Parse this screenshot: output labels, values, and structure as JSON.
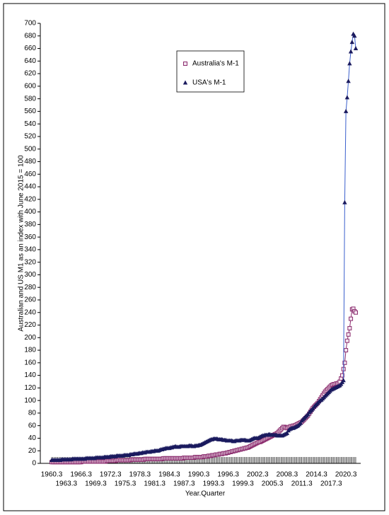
{
  "chart_data": {
    "type": "line",
    "y_label": "Australian and US M1 as an index with June 2015 = 100",
    "x_label": "Year.Quarter",
    "categories": [
      "1960.3",
      null,
      null,
      null,
      null,
      null,
      null,
      null,
      null,
      null,
      null,
      null,
      "1963.3",
      null,
      null,
      null,
      null,
      null,
      null,
      null,
      null,
      null,
      null,
      null,
      "1966.3",
      null,
      null,
      null,
      null,
      null,
      null,
      null,
      null,
      null,
      null,
      null,
      "1969.3",
      null,
      null,
      null,
      null,
      null,
      null,
      null,
      null,
      null,
      null,
      null,
      "1972.3",
      null,
      null,
      null,
      null,
      null,
      null,
      null,
      null,
      null,
      null,
      null,
      "1975.3",
      null,
      null,
      null,
      null,
      null,
      null,
      null,
      null,
      null,
      null,
      null,
      "1978.3",
      null,
      null,
      null,
      null,
      null,
      null,
      null,
      null,
      null,
      null,
      null,
      "1981.3",
      null,
      null,
      null,
      null,
      null,
      null,
      null,
      null,
      null,
      null,
      null,
      "1984.3",
      null,
      null,
      null,
      null,
      null,
      null,
      null,
      null,
      null,
      null,
      null,
      "1987.3",
      null,
      null,
      null,
      null,
      null,
      null,
      null,
      null,
      null,
      null,
      null,
      "1990.3",
      null,
      null,
      null,
      null,
      null,
      null,
      null,
      null,
      null,
      null,
      null,
      "1993.3",
      null,
      null,
      null,
      null,
      null,
      null,
      null,
      null,
      null,
      null,
      null,
      "1996.3",
      null,
      null,
      null,
      null,
      null,
      null,
      null,
      null,
      null,
      null,
      null,
      "1999.3",
      null,
      null,
      null,
      null,
      null,
      null,
      null,
      null,
      null,
      null,
      null,
      "2002.3",
      null,
      null,
      null,
      null,
      null,
      null,
      null,
      null,
      null,
      null,
      null,
      "2005.3",
      null,
      null,
      null,
      null,
      null,
      null,
      null,
      null,
      null,
      null,
      null,
      "2008.3",
      null,
      null,
      null,
      null,
      null,
      null,
      null,
      null,
      null,
      null,
      null,
      "2011.3",
      null,
      null,
      null,
      null,
      null,
      null,
      null,
      null,
      null,
      null,
      null,
      "2014.3",
      null,
      null,
      null,
      null,
      null,
      null,
      null,
      null,
      null,
      null,
      null,
      "2017.3",
      null,
      null,
      null,
      null,
      null,
      null,
      null,
      null,
      null,
      null,
      null,
      "2020.3",
      null,
      null,
      null,
      null,
      null,
      null,
      null,
      null
    ],
    "series": [
      {
        "name": "Australia's M-1",
        "color": "#8b2c6e",
        "marker": "square",
        "values": [
          2,
          2,
          2,
          2,
          2,
          2,
          2,
          2,
          2,
          2,
          2,
          2,
          2,
          2,
          2,
          2,
          2,
          2,
          2,
          2,
          2,
          2,
          2,
          2,
          2,
          3,
          3,
          3,
          3,
          3,
          3,
          3,
          3,
          3,
          3,
          3,
          3,
          3,
          3,
          3,
          3,
          3,
          3,
          3,
          3,
          4,
          4,
          4,
          4,
          4,
          4,
          4,
          4,
          5,
          5,
          5,
          5,
          5,
          5,
          5,
          5,
          5,
          5,
          5,
          5,
          6,
          6,
          6,
          6,
          6,
          6,
          6,
          6,
          6,
          6,
          6,
          7,
          7,
          7,
          7,
          7,
          7,
          7,
          7,
          7,
          7,
          7,
          7,
          7,
          7,
          7,
          8,
          8,
          8,
          8,
          8,
          8,
          8,
          8,
          8,
          8,
          8,
          8,
          8,
          8,
          8,
          8,
          8,
          9,
          9,
          9,
          9,
          9,
          9,
          9,
          9,
          9,
          10,
          10,
          10,
          10,
          10,
          10,
          10,
          11,
          11,
          11,
          11,
          12,
          12,
          12,
          13,
          13,
          13,
          14,
          14,
          14,
          15,
          15,
          15,
          16,
          16,
          16,
          17,
          17,
          18,
          18,
          19,
          19,
          20,
          20,
          21,
          21,
          22,
          22,
          23,
          23,
          24,
          24,
          25,
          25,
          26,
          27,
          28,
          29,
          30,
          31,
          32,
          33,
          34,
          34,
          35,
          36,
          37,
          38,
          39,
          40,
          41,
          42,
          43,
          44,
          45,
          46,
          47,
          48,
          50,
          52,
          54,
          56,
          58,
          58,
          57,
          56,
          57,
          58,
          59,
          59,
          60,
          60,
          61,
          62,
          63,
          64,
          65,
          66,
          68,
          70,
          72,
          74,
          76,
          79,
          82,
          85,
          88,
          90,
          92,
          94,
          96,
          99,
          102,
          105,
          108,
          111,
          114,
          116,
          118,
          120,
          122,
          124,
          125,
          126,
          126,
          127,
          127,
          128,
          130,
          135,
          140,
          150,
          160,
          180,
          195,
          205,
          215,
          230,
          245,
          246,
          242,
          240
        ]
      },
      {
        "name": "USA's M-1",
        "color": "#1a1a5e",
        "line_color": "#3a5fcd",
        "marker": "triangle",
        "values": [
          5,
          5,
          5,
          5,
          5,
          5,
          5,
          5,
          6,
          6,
          6,
          6,
          6,
          6,
          6,
          6,
          6,
          7,
          7,
          7,
          7,
          7,
          7,
          7,
          7,
          7,
          7,
          7,
          8,
          8,
          8,
          8,
          8,
          8,
          8,
          8,
          9,
          9,
          9,
          9,
          9,
          9,
          9,
          10,
          10,
          10,
          10,
          10,
          11,
          11,
          11,
          11,
          11,
          12,
          12,
          12,
          12,
          12,
          12,
          13,
          13,
          13,
          13,
          13,
          14,
          14,
          14,
          15,
          15,
          15,
          15,
          16,
          16,
          16,
          17,
          17,
          17,
          18,
          18,
          18,
          18,
          19,
          19,
          19,
          20,
          20,
          20,
          20,
          21,
          22,
          22,
          23,
          23,
          24,
          24,
          24,
          24,
          25,
          25,
          26,
          26,
          27,
          26,
          26,
          26,
          27,
          27,
          27,
          27,
          27,
          27,
          27,
          28,
          28,
          28,
          27,
          27,
          28,
          28,
          28,
          29,
          29,
          30,
          31,
          32,
          33,
          34,
          35,
          36,
          37,
          38,
          38,
          39,
          39,
          39,
          39,
          38,
          38,
          38,
          38,
          37,
          37,
          37,
          36,
          36,
          36,
          36,
          36,
          35,
          35,
          36,
          36,
          36,
          36,
          37,
          37,
          37,
          37,
          37,
          36,
          36,
          36,
          37,
          38,
          39,
          40,
          40,
          40,
          40,
          41,
          42,
          43,
          44,
          44,
          45,
          45,
          45,
          46,
          46,
          45,
          45,
          45,
          45,
          45,
          44,
          44,
          44,
          44,
          44,
          45,
          46,
          47,
          48,
          52,
          54,
          55,
          56,
          56,
          57,
          58,
          59,
          60,
          62,
          64,
          68,
          70,
          72,
          74,
          76,
          78,
          81,
          83,
          85,
          87,
          90,
          92,
          94,
          96,
          98,
          100,
          101,
          103,
          105,
          107,
          109,
          111,
          113,
          115,
          117,
          118,
          119,
          120,
          121,
          122,
          123,
          124,
          126,
          129,
          132,
          415,
          560,
          582,
          608,
          636,
          655,
          670,
          683,
          680,
          660
        ]
      }
    ],
    "ylim": [
      0,
      700
    ],
    "yticks": [
      0,
      20,
      40,
      60,
      80,
      100,
      120,
      140,
      160,
      180,
      200,
      220,
      240,
      260,
      280,
      300,
      320,
      340,
      360,
      380,
      400,
      420,
      440,
      460,
      480,
      500,
      520,
      540,
      560,
      580,
      600,
      620,
      640,
      660,
      680,
      700
    ],
    "legend": "top"
  }
}
